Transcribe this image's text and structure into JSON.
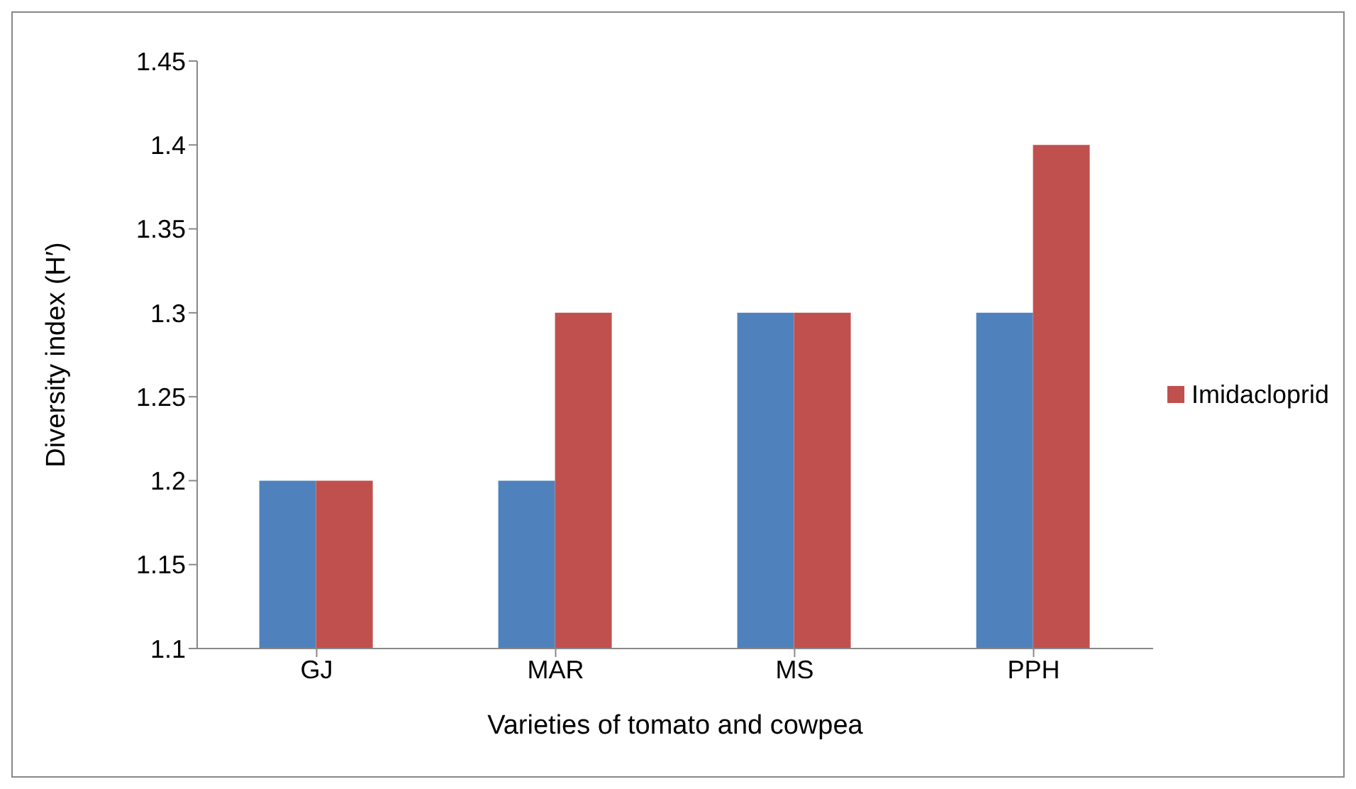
{
  "chart_data": {
    "type": "bar",
    "xlabel": "Varieties of tomato and cowpea",
    "ylabel": "Diversity index (H′)",
    "categories": [
      "GJ",
      "MAR",
      "MS",
      "PPH"
    ],
    "series": [
      {
        "color": "#4f81bd",
        "values": [
          1.2,
          1.2,
          1.3,
          1.3
        ]
      },
      {
        "name": "Imidacloprid",
        "color": "#c0504d",
        "values": [
          1.2,
          1.3,
          1.3,
          1.4
        ]
      }
    ],
    "ylim": [
      1.1,
      1.45
    ],
    "yticks": [
      1.1,
      1.15,
      1.2,
      1.25,
      1.3,
      1.35,
      1.4,
      1.45
    ],
    "grid": false,
    "legend": "right"
  }
}
